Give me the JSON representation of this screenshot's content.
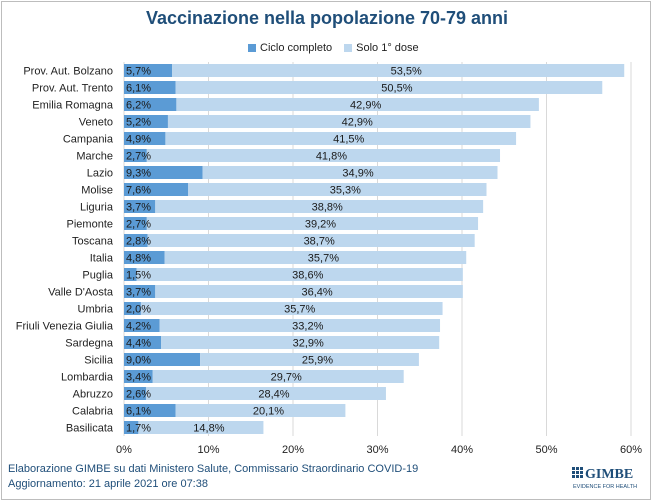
{
  "chart_data": {
    "type": "bar",
    "orientation": "horizontal",
    "stacked": true,
    "title": "Vaccinazione nella popolazione 70-79 anni",
    "categories": [
      "Prov. Aut. Bolzano",
      "Prov. Aut. Trento",
      "Emilia Romagna",
      "Veneto",
      "Campania",
      "Marche",
      "Lazio",
      "Molise",
      "Liguria",
      "Piemonte",
      "Toscana",
      "Italia",
      "Puglia",
      "Valle D'Aosta",
      "Umbria",
      "Friuli Venezia Giulia",
      "Sardegna",
      "Sicilia",
      "Lombardia",
      "Abruzzo",
      "Calabria",
      "Basilicata"
    ],
    "series": [
      {
        "name": "Ciclo completo",
        "color": "#5b9bd5",
        "values": [
          5.7,
          6.1,
          6.2,
          5.2,
          4.9,
          2.7,
          9.3,
          7.6,
          3.7,
          2.7,
          2.8,
          4.8,
          1.5,
          3.7,
          2.0,
          4.2,
          4.4,
          9.0,
          3.4,
          2.6,
          6.1,
          1.7
        ],
        "labels": [
          "5,7%",
          "6,1%",
          "6,2%",
          "5,2%",
          "4,9%",
          "2,7%",
          "9,3%",
          "7,6%",
          "3,7%",
          "2,7%",
          "2,8%",
          "4,8%",
          "1,5%",
          "3,7%",
          "2,0%",
          "4,2%",
          "4,4%",
          "9,0%",
          "3,4%",
          "2,6%",
          "6,1%",
          "1,7%"
        ]
      },
      {
        "name": "Solo 1° dose",
        "color": "#bdd7ee",
        "values": [
          53.5,
          50.5,
          42.9,
          42.9,
          41.5,
          41.8,
          34.9,
          35.3,
          38.8,
          39.2,
          38.7,
          35.7,
          38.6,
          36.4,
          35.7,
          33.2,
          32.9,
          25.9,
          29.7,
          28.4,
          20.1,
          14.8
        ],
        "labels": [
          "53,5%",
          "50,5%",
          "42,9%",
          "42,9%",
          "41,5%",
          "41,8%",
          "34,9%",
          "35,3%",
          "38,8%",
          "39,2%",
          "38,7%",
          "35,7%",
          "38,6%",
          "36,4%",
          "35,7%",
          "33,2%",
          "32,9%",
          "25,9%",
          "29,7%",
          "28,4%",
          "20,1%",
          "14,8%"
        ]
      }
    ],
    "xlim": [
      0,
      60
    ],
    "xticks": [
      0,
      10,
      20,
      30,
      40,
      50,
      60
    ],
    "xtick_labels": [
      "0%",
      "10%",
      "20%",
      "30%",
      "40%",
      "50%",
      "60%"
    ],
    "grid": true,
    "legend_position": "top"
  },
  "footer": {
    "line1": "Elaborazione GIMBE su dati Ministero Salute, Commissario Straordinario COVID-19",
    "line2": "Aggiornamento: 21 aprile 2021 ore 07:38"
  },
  "logo": {
    "name": "GIMBE",
    "tagline": "EVIDENCE FOR HEALTH",
    "color": "#1f4e79"
  }
}
